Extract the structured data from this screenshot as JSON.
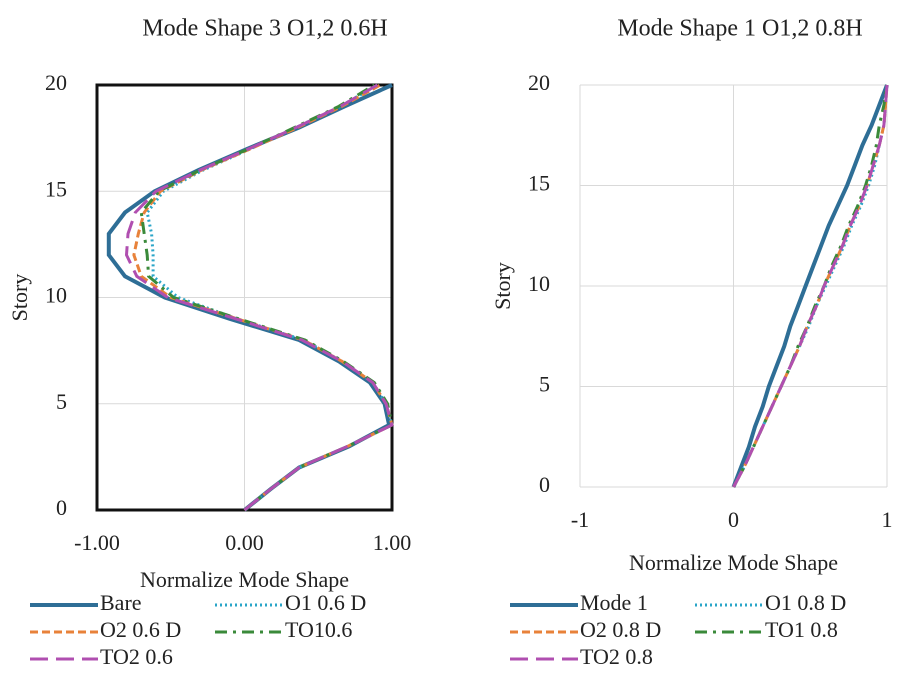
{
  "chart_data": [
    {
      "type": "line",
      "title": "Mode Shape 3 O1,2 0.6H",
      "xlabel": "Normalize Mode Shape",
      "ylabel": "Story",
      "xlim": [
        -1,
        1
      ],
      "ylim": [
        0,
        20
      ],
      "xticks": [
        {
          "value": -1,
          "label": "-1.00"
        },
        {
          "value": 0,
          "label": "0.00"
        },
        {
          "value": 1,
          "label": "1.00"
        }
      ],
      "yticks": [
        0,
        5,
        10,
        15,
        20
      ],
      "grid": true,
      "frame": true,
      "y": [
        0,
        1,
        2,
        3,
        4,
        5,
        6,
        7,
        8,
        9,
        10,
        11,
        12,
        13,
        14,
        15,
        16,
        17,
        18,
        19,
        20
      ],
      "series": [
        {
          "name": "Bare",
          "color": "#2e6e96",
          "style": "solid",
          "values": [
            0,
            0.18,
            0.37,
            0.71,
            0.98,
            0.95,
            0.85,
            0.64,
            0.37,
            -0.1,
            -0.54,
            -0.81,
            -0.92,
            -0.92,
            -0.81,
            -0.61,
            -0.31,
            0.02,
            0.37,
            0.68,
            1.0
          ]
        },
        {
          "name": "O1 0.6 D",
          "color": "#2aa5c8",
          "style": "dotted",
          "values": [
            0,
            0.18,
            0.37,
            0.7,
            1.0,
            0.96,
            0.87,
            0.66,
            0.4,
            -0.05,
            -0.45,
            -0.62,
            -0.62,
            -0.63,
            -0.66,
            -0.55,
            -0.28,
            0.04,
            0.35,
            0.65,
            0.9
          ]
        },
        {
          "name": "O2 0.6 D",
          "color": "#e8823a",
          "style": "dashed",
          "values": [
            0,
            0.18,
            0.37,
            0.7,
            1.0,
            0.96,
            0.87,
            0.66,
            0.4,
            -0.05,
            -0.5,
            -0.7,
            -0.75,
            -0.72,
            -0.68,
            -0.57,
            -0.29,
            0.04,
            0.36,
            0.66,
            0.92
          ]
        },
        {
          "name": "TO10.6",
          "color": "#3a8a3a",
          "style": "dashdot",
          "values": [
            0,
            0.18,
            0.37,
            0.7,
            1.0,
            0.97,
            0.88,
            0.67,
            0.41,
            -0.04,
            -0.48,
            -0.65,
            -0.66,
            -0.68,
            -0.7,
            -0.58,
            -0.3,
            0.03,
            0.34,
            0.64,
            0.88
          ]
        },
        {
          "name": "TO2 0.6",
          "color": "#b04fb0",
          "style": "longdash",
          "values": [
            0,
            0.18,
            0.37,
            0.7,
            1.0,
            0.96,
            0.87,
            0.66,
            0.39,
            -0.06,
            -0.52,
            -0.73,
            -0.8,
            -0.79,
            -0.74,
            -0.6,
            -0.3,
            0.03,
            0.35,
            0.65,
            0.9
          ]
        }
      ]
    },
    {
      "type": "line",
      "title": "Mode Shape 1 O1,2 0.8H",
      "xlabel": "Normalize Mode Shape",
      "ylabel": "Story",
      "xlim": [
        -1,
        1
      ],
      "ylim": [
        0,
        20
      ],
      "xticks": [
        -1,
        0,
        1
      ],
      "yticks": [
        0,
        5,
        10,
        15,
        20
      ],
      "grid": true,
      "frame": false,
      "y": [
        0,
        1,
        2,
        3,
        4,
        5,
        6,
        7,
        8,
        9,
        10,
        11,
        12,
        13,
        14,
        15,
        16,
        17,
        18,
        19,
        20
      ],
      "series": [
        {
          "name": "Mode 1",
          "color": "#2e6e96",
          "style": "solid",
          "values": [
            0,
            0.05,
            0.1,
            0.14,
            0.19,
            0.23,
            0.28,
            0.33,
            0.37,
            0.42,
            0.47,
            0.52,
            0.57,
            0.62,
            0.68,
            0.74,
            0.79,
            0.84,
            0.9,
            0.95,
            1.0
          ]
        },
        {
          "name": "O1 0.8 D",
          "color": "#2aa5c8",
          "style": "dotted",
          "values": [
            0,
            0.07,
            0.13,
            0.19,
            0.25,
            0.31,
            0.37,
            0.43,
            0.49,
            0.54,
            0.6,
            0.66,
            0.72,
            0.77,
            0.83,
            0.88,
            0.92,
            0.95,
            0.98,
            0.99,
            1.0
          ]
        },
        {
          "name": "O2 0.8 D",
          "color": "#e8823a",
          "style": "dashed",
          "values": [
            0,
            0.07,
            0.13,
            0.19,
            0.25,
            0.31,
            0.37,
            0.43,
            0.48,
            0.54,
            0.59,
            0.65,
            0.71,
            0.76,
            0.82,
            0.87,
            0.91,
            0.95,
            0.98,
            0.99,
            1.0
          ]
        },
        {
          "name": "TO1 0.8",
          "color": "#3a8a3a",
          "style": "dashdot",
          "values": [
            0,
            0.07,
            0.13,
            0.19,
            0.25,
            0.31,
            0.37,
            0.42,
            0.48,
            0.53,
            0.59,
            0.64,
            0.7,
            0.75,
            0.81,
            0.86,
            0.9,
            0.93,
            0.95,
            0.98,
            1.0
          ]
        },
        {
          "name": "TO2 0.8",
          "color": "#b04fb0",
          "style": "longdash",
          "values": [
            0,
            0.07,
            0.13,
            0.19,
            0.25,
            0.31,
            0.37,
            0.43,
            0.48,
            0.54,
            0.59,
            0.65,
            0.71,
            0.76,
            0.82,
            0.87,
            0.91,
            0.95,
            0.98,
            0.99,
            1.0
          ]
        }
      ]
    }
  ]
}
